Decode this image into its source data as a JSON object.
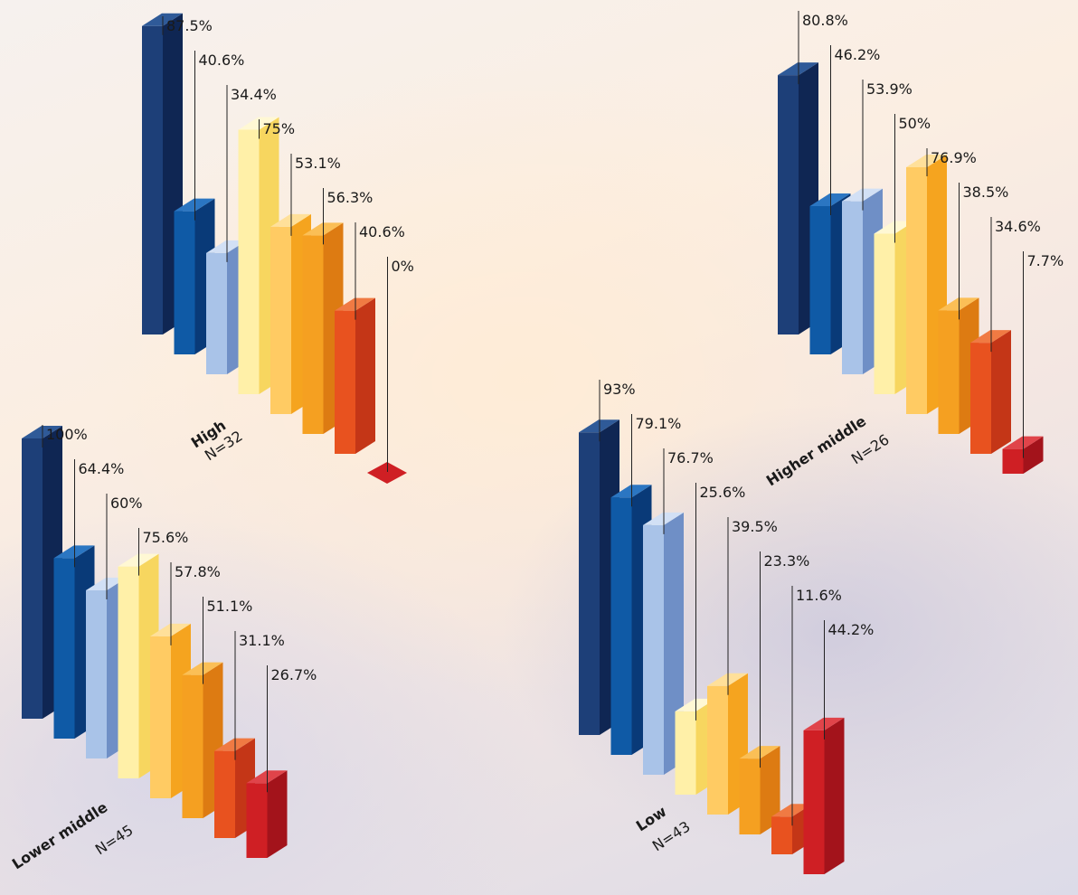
{
  "chart_data": [
    {
      "type": "bar",
      "group": "High",
      "n_label": "N=32",
      "values": [
        87.5,
        40.6,
        34.4,
        75,
        53.1,
        56.3,
        40.6,
        0
      ],
      "labels": [
        "87.5%",
        "40.6%",
        "34.4%",
        "75%",
        "53.1%",
        "56.3%",
        "40.6%",
        "0%"
      ]
    },
    {
      "type": "bar",
      "group": "Higher middle",
      "n_label": "N=26",
      "values": [
        80.8,
        46.2,
        53.9,
        50,
        76.9,
        38.5,
        34.6,
        7.7
      ],
      "labels": [
        "80.8%",
        "46.2%",
        "53.9%",
        "50%",
        "76.9%",
        "38.5%",
        "34.6%",
        "7.7%"
      ]
    },
    {
      "type": "bar",
      "group": "Lower middle",
      "n_label": "N=45",
      "values": [
        100,
        64.4,
        60,
        75.6,
        57.8,
        51.1,
        31.1,
        26.7
      ],
      "labels": [
        "100%",
        "64.4%",
        "60%",
        "75.6%",
        "57.8%",
        "51.1%",
        "31.1%",
        "26.7%"
      ]
    },
    {
      "type": "bar",
      "group": "Low",
      "n_label": "N=43",
      "values": [
        93,
        79.1,
        76.7,
        25.6,
        39.5,
        23.3,
        11.6,
        44.2
      ],
      "labels": [
        "93%",
        "79.1%",
        "76.7%",
        "25.6%",
        "39.5%",
        "23.3%",
        "11.6%",
        "44.2%"
      ]
    }
  ],
  "palette": [
    {
      "front": "#1d3f78",
      "side": "#0f2653",
      "top": "#2f5a98"
    },
    {
      "front": "#0f5aa6",
      "side": "#093a78",
      "top": "#2b76c2"
    },
    {
      "front": "#a9c3e8",
      "side": "#6f8fc6",
      "top": "#d2e0f5"
    },
    {
      "front": "#fff0a8",
      "side": "#f7d65f",
      "top": "#fff8d4"
    },
    {
      "front": "#ffcb63",
      "side": "#f5a41f",
      "top": "#ffe09a"
    },
    {
      "front": "#f5a021",
      "side": "#dd7b12",
      "top": "#fbbf56"
    },
    {
      "front": "#e8521f",
      "side": "#c43617",
      "top": "#f07a43"
    },
    {
      "front": "#cf1f24",
      "side": "#a3131b",
      "top": "#e0444a"
    }
  ]
}
